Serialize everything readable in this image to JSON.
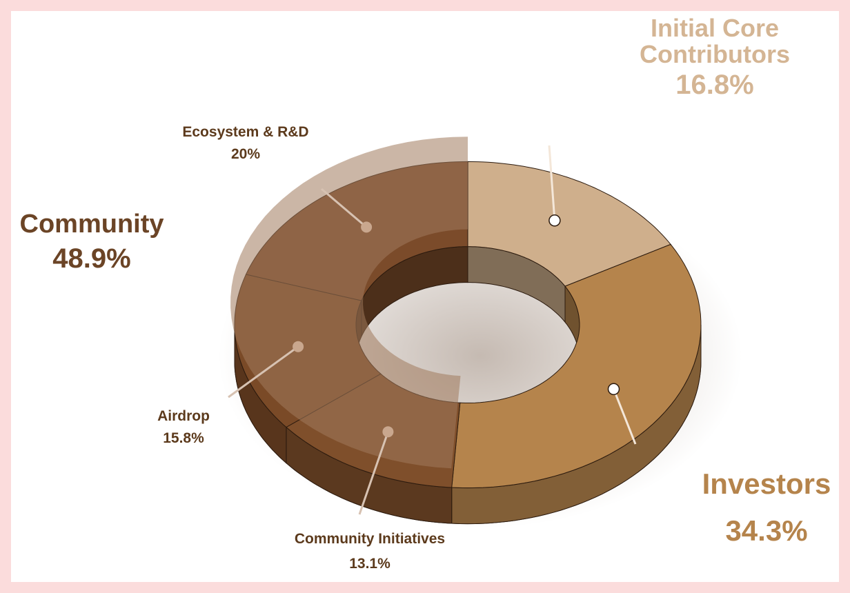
{
  "chart_data": {
    "type": "pie",
    "style": "3d-donut",
    "total_reading": "Community 48.9% = Ecosystem & R&D 20% + Airdrop 15.8% + Community Initiatives 13.1%",
    "slices": [
      {
        "label": "Initial Core Contributors",
        "value": 16.8,
        "value_text": "16.8%",
        "color": "#cfaf8c"
      },
      {
        "label": "Investors",
        "value": 34.3,
        "value_text": "34.3%",
        "color": "#b5844c"
      },
      {
        "label": "Community Initiatives",
        "value": 13.1,
        "value_text": "13.1%",
        "color": "#7f4f2b",
        "group": "Community"
      },
      {
        "label": "Airdrop",
        "value": 15.8,
        "value_text": "15.8%",
        "color": "#7a4a27",
        "group": "Community"
      },
      {
        "label": "Ecosystem & R&D",
        "value": 20,
        "value_text": "20%",
        "color": "#7b4b2a",
        "group": "Community"
      }
    ],
    "groups": [
      {
        "label": "Community",
        "value": 48.9,
        "value_text": "48.9%",
        "color": "#a07a5c"
      }
    ]
  },
  "labels": {
    "core": {
      "line1": "Initial Core",
      "line2": "Contributors",
      "pct": "16.8%"
    },
    "ecosystem": {
      "name": "Ecosystem & R&D",
      "pct": "20%"
    },
    "community": {
      "name": "Community",
      "pct": "48.9%"
    },
    "airdrop": {
      "name": "Airdrop",
      "pct": "15.8%"
    },
    "initiatives": {
      "name": "Community Initiatives",
      "pct": "13.1%"
    },
    "investors": {
      "name": "Investors",
      "pct": "34.3%"
    }
  },
  "colors": {
    "frame": "#fbdcdc",
    "core_text": "#d4b594",
    "investors_text": "#b5844c",
    "community_text": "#6b4426",
    "small_label_text": "#5c3a1c"
  }
}
